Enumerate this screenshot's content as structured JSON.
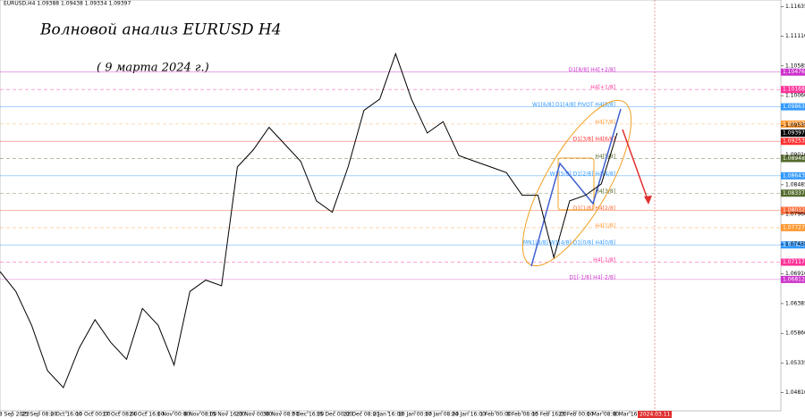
{
  "chart_data": {
    "type": "line",
    "header": "EURUSD,H4  1.09388 1.09438 1.09334 1.09397",
    "title": "Волновой анализ EURUSD H4",
    "subtitle": "( 9 марта 2024 г.)",
    "color": "#000000",
    "values": [
      1.0695,
      1.066,
      1.06,
      1.052,
      1.049,
      1.056,
      1.061,
      1.057,
      1.054,
      1.063,
      1.06,
      1.053,
      1.066,
      1.068,
      1.067,
      1.088,
      1.091,
      1.095,
      1.092,
      1.089,
      1.082,
      1.08,
      1.088,
      1.098,
      1.1,
      1.108,
      1.1,
      1.094,
      1.096,
      1.09,
      1.089,
      1.088,
      1.087,
      1.083,
      1.083,
      1.072,
      1.082,
      1.083,
      1.085,
      1.094
    ],
    "ylim": [
      1.0449,
      1.1175
    ],
    "yticks": [
      {
        "value": 1.11635,
        "label": "1.11635"
      },
      {
        "value": 1.1111,
        "label": "1.11110"
      },
      {
        "value": 1.10585,
        "label": "1.10585"
      },
      {
        "value": 1.1006,
        "label": "1.10060"
      },
      {
        "value": 1.09535,
        "label": "1.09535"
      },
      {
        "value": 1.0901,
        "label": "1.09010"
      },
      {
        "value": 1.08485,
        "label": "1.08485"
      },
      {
        "value": 1.0796,
        "label": "1.07960"
      },
      {
        "value": 1.07435,
        "label": "1.07435"
      },
      {
        "value": 1.0691,
        "label": "1.06910"
      },
      {
        "value": 1.06385,
        "label": "1.06385"
      },
      {
        "value": 1.0586,
        "label": "1.05860"
      },
      {
        "value": 1.05335,
        "label": "1.05335"
      },
      {
        "value": 1.0481,
        "label": "1.04810"
      }
    ],
    "xticks": [
      "18 Sep 2023",
      "25 Sep 08:00",
      "2 Oct 16:00",
      "10 Oct 00:00",
      "17 Oct 08:00",
      "24 Oct 16:00",
      "1 Nov 00:00",
      "8 Nov 08:00",
      "15 Nov 16:00",
      "23 Nov 00:00",
      "30 Nov 08:00",
      "7 Dec 16:00",
      "15 Dec 00:00",
      "22 Dec 08:00",
      "2 Jan 16:00",
      "10 Jan 00:00",
      "17 Jan 08:00",
      "24 Jan 16:00",
      "1 Feb 00:00",
      "8 Feb 08:00",
      "15 Feb 16:00",
      "23 Feb 00:00",
      "1 Mar 08:00",
      "8 Mar 16:00"
    ],
    "current_time": "2024.03.11 20:00",
    "current_price": {
      "value": 1.09397,
      "label": "1.09397"
    },
    "levels": [
      {
        "name": "D1[8/8] H4[+2/8]",
        "value": 1.10476,
        "label": "1.10476",
        "color": "#cc33cc"
      },
      {
        "name": "H4[+1/8]",
        "value": 1.10168,
        "label": "1.10168",
        "color": "#ff3399"
      },
      {
        "name": "W1[6/8] D1[4/8] PIVOT H4[8/8]",
        "value": 1.09863,
        "label": "1.09863",
        "color": "#3399ff"
      },
      {
        "name": "H4[7/8]",
        "value": 1.09558,
        "label": "1.09558",
        "color": "#ff9933"
      },
      {
        "name": "D1[3/8] H4[6/8]",
        "value": 1.09253,
        "label": "1.09253",
        "color": "#ff3333"
      },
      {
        "name": "H4[5/8]",
        "value": 1.08948,
        "label": "1.08948",
        "color": "#556b2f"
      },
      {
        "name": "W1[5/8] D1[2/8] H4[4/8]",
        "value": 1.08643,
        "label": "1.08643",
        "color": "#3399ff"
      },
      {
        "name": "H4[3/8]",
        "value": 1.08337,
        "label": "1.08337",
        "color": "#556b2f"
      },
      {
        "name": "D1[1/8] H4[2/8]",
        "value": 1.08032,
        "label": "1.08032",
        "color": "#ff6633"
      },
      {
        "name": "H4[1/8]",
        "value": 1.07727,
        "label": "1.07727",
        "color": "#ff9933"
      },
      {
        "name": "MN1[8/8] W1[4/8] D1[0/8] H4[0/8]",
        "value": 1.07422,
        "label": "1.07422",
        "color": "#3399ff"
      },
      {
        "name": "H4[-1/8]",
        "value": 1.07117,
        "label": "1.07117",
        "color": "#ff3399"
      },
      {
        "name": "D1[-1/8] H4[-2/8]",
        "value": 1.06812,
        "label": "1.06812",
        "color": "#cc33cc"
      }
    ]
  }
}
